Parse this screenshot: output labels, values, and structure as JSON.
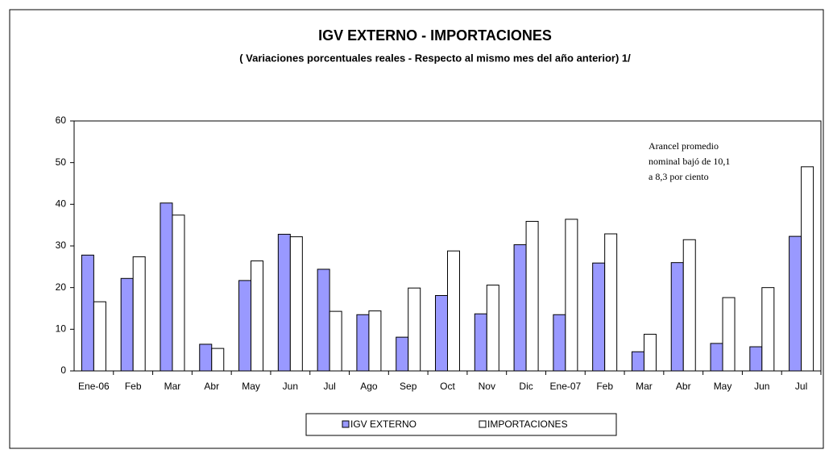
{
  "chart_data": {
    "type": "bar",
    "title": "IGV EXTERNO - IMPORTACIONES",
    "subtitle": "( Variaciones porcentuales reales - Respecto al mismo mes del año anterior) 1/",
    "categories": [
      "Ene-06",
      "Feb",
      "Mar",
      "Abr",
      "May",
      "Jun",
      "Jul",
      "Ago",
      "Sep",
      "Oct",
      "Nov",
      "Dic",
      "Ene-07",
      "Feb",
      "Mar",
      "Abr",
      "May",
      "Jun",
      "Jul"
    ],
    "series": [
      {
        "name": "IGV EXTERNO",
        "color": "#9999ff",
        "values": [
          27.8,
          22.2,
          40.3,
          6.4,
          21.7,
          32.8,
          24.4,
          13.5,
          8.1,
          18.1,
          13.7,
          30.3,
          13.5,
          25.9,
          4.6,
          26.0,
          6.6,
          5.8,
          32.3
        ]
      },
      {
        "name": "IMPORTACIONES",
        "color": "#ffffff",
        "values": [
          16.6,
          27.4,
          37.4,
          5.4,
          26.4,
          32.2,
          14.3,
          14.4,
          19.9,
          28.8,
          20.6,
          35.9,
          36.4,
          32.9,
          8.8,
          31.5,
          17.6,
          20.0,
          49.0
        ]
      }
    ],
    "ylim": [
      0,
      60
    ],
    "yticks": [
      0,
      10,
      20,
      30,
      40,
      50,
      60
    ],
    "annotation": [
      "Arancel promedio",
      "nominal bajó de 10,1",
      "a 8,3 por ciento"
    ]
  }
}
